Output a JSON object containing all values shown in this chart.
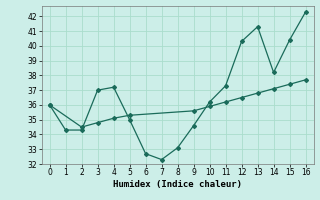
{
  "xlabel": "Humidex (Indice chaleur)",
  "background_color": "#cceee8",
  "grid_color": "#aaddcc",
  "line_color": "#1a6b5a",
  "xlim": [
    -0.5,
    16.5
  ],
  "ylim": [
    32,
    42.7
  ],
  "yticks": [
    32,
    33,
    34,
    35,
    36,
    37,
    38,
    39,
    40,
    41,
    42
  ],
  "xticks": [
    0,
    1,
    2,
    3,
    4,
    5,
    6,
    7,
    8,
    9,
    10,
    11,
    12,
    13,
    14,
    15,
    16
  ],
  "series1_x": [
    0,
    1,
    2,
    3,
    4,
    5,
    6,
    7,
    8,
    9,
    10,
    11,
    12,
    13,
    14,
    15,
    16
  ],
  "series1_y": [
    36.0,
    34.3,
    34.3,
    37.0,
    37.2,
    35.0,
    32.7,
    32.3,
    33.1,
    34.6,
    36.2,
    37.3,
    40.3,
    41.3,
    38.2,
    40.4,
    42.3
  ],
  "series2_x": [
    0,
    2,
    3,
    4,
    5,
    9,
    10,
    11,
    12,
    13,
    14,
    15,
    16
  ],
  "series2_y": [
    36.0,
    34.5,
    34.8,
    35.1,
    35.3,
    35.6,
    35.9,
    36.2,
    36.5,
    36.8,
    37.1,
    37.4,
    37.7
  ]
}
